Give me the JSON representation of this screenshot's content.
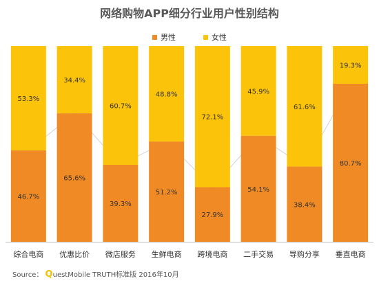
{
  "chart_data": {
    "type": "bar",
    "stacked": true,
    "title": "网络购物APP细分行业用户性别结构",
    "categories": [
      "综合电商",
      "优惠比价",
      "微店服务",
      "生鲜电商",
      "跨境电商",
      "二手交易",
      "导购分享",
      "垂直电商"
    ],
    "series": [
      {
        "name": "男性",
        "color": "#f08a24",
        "values": [
          46.7,
          65.6,
          39.3,
          51.2,
          27.9,
          54.1,
          38.4,
          80.7
        ],
        "labels": [
          "46.7%",
          "65.6%",
          "39.3%",
          "51.2%",
          "27.9%",
          "54.1%",
          "38.4%",
          "80.7%"
        ]
      },
      {
        "name": "女性",
        "color": "#fcc30b",
        "values": [
          53.3,
          34.4,
          60.7,
          48.8,
          72.1,
          45.9,
          61.6,
          19.3
        ],
        "labels": [
          "53.3%",
          "34.4%",
          "60.7%",
          "48.8%",
          "72.1%",
          "45.9%",
          "61.6%",
          "19.3%"
        ]
      }
    ],
    "ylim": [
      0,
      100
    ],
    "legend_position": "top-center",
    "grid": false,
    "connector_line": true
  },
  "source": {
    "prefix": "Source：",
    "brand_initial": "Q",
    "brand_rest": "uestMobile TRUTH标准版 2016年10月"
  }
}
